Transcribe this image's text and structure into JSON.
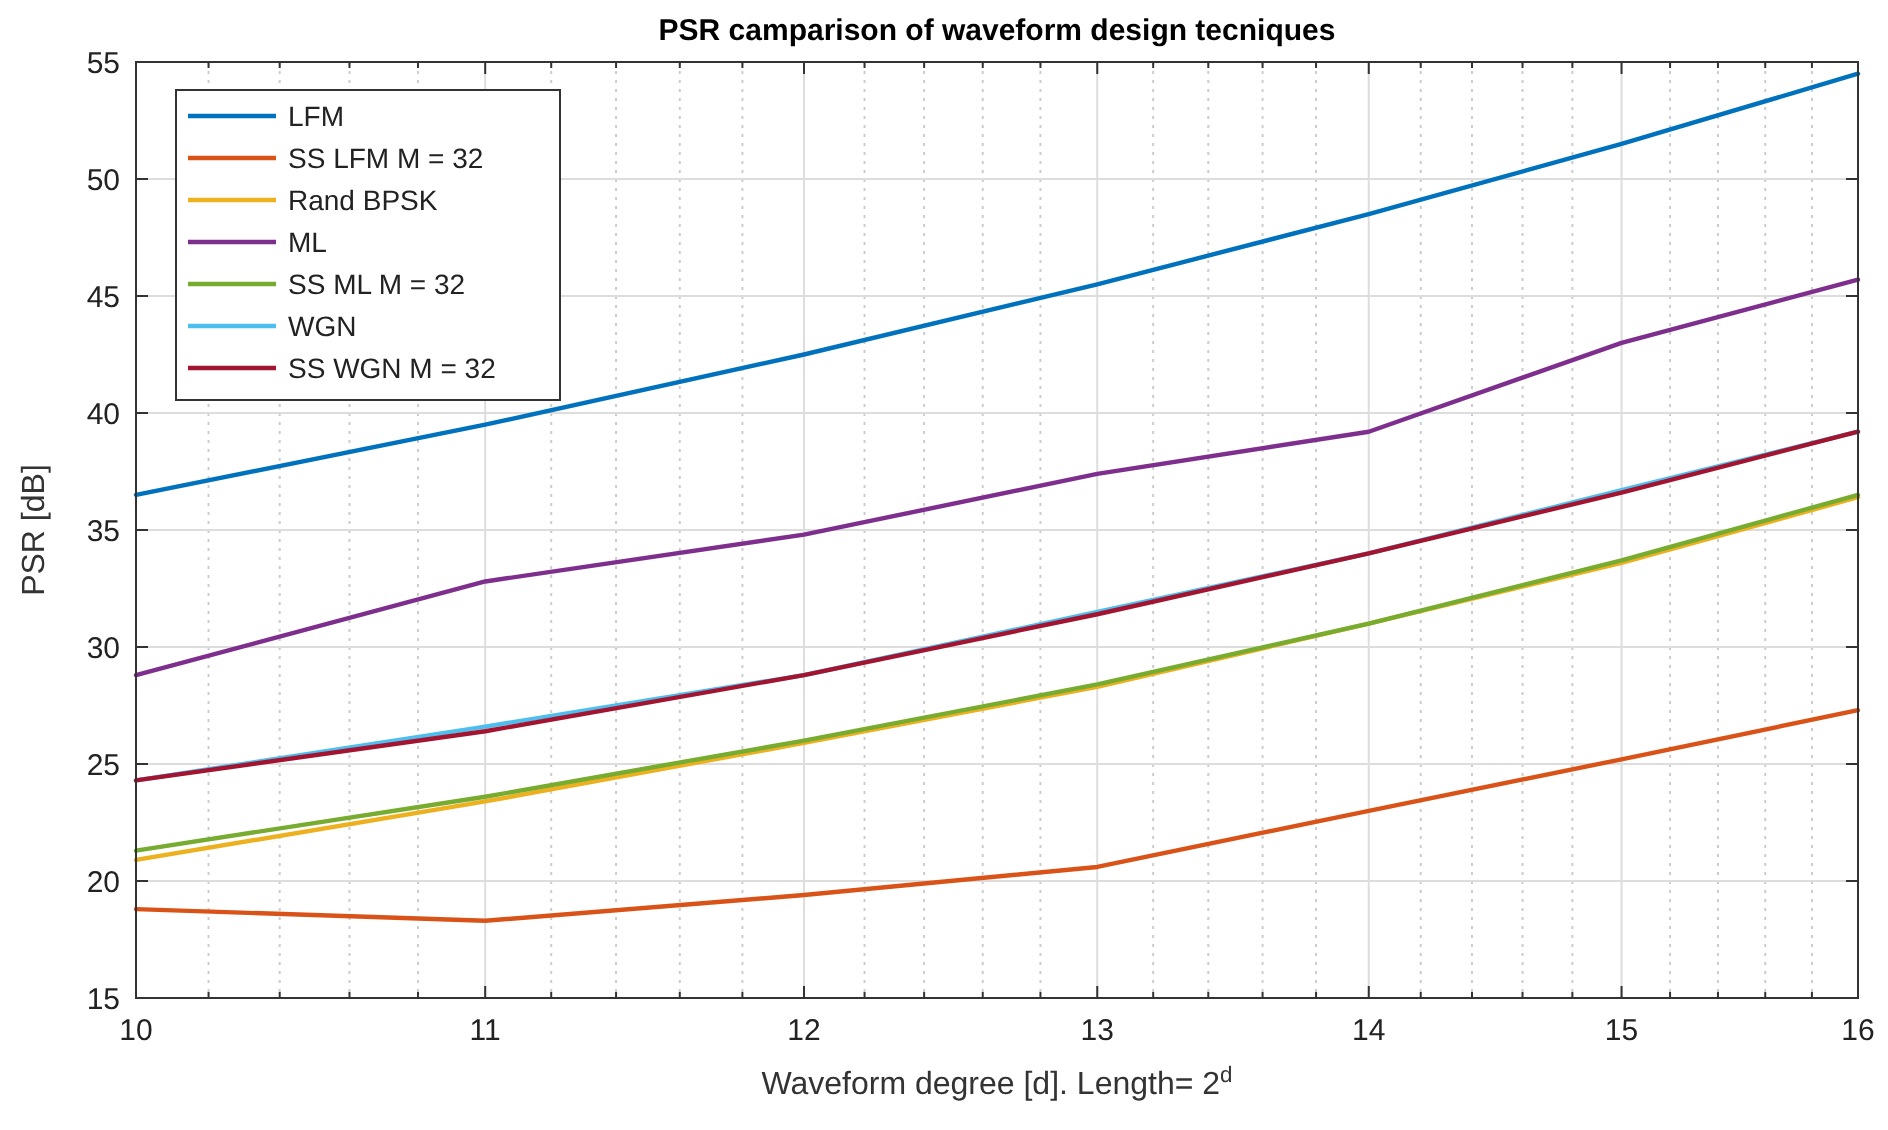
{
  "chart_data": {
    "type": "line",
    "title": "PSR camparison of waveform design tecniques",
    "xlabel": "Waveform degree [d]. Length= 2$^{d}$",
    "ylabel": "PSR [dB]",
    "x": [
      10,
      11,
      12,
      13,
      14,
      15,
      16
    ],
    "xlim": [
      10,
      16
    ],
    "log": "x",
    "xticks": [
      10,
      {
        "value": 10.2,
        "label": null
      },
      {
        "value": 10.4,
        "label": null
      },
      {
        "value": 10.6,
        "label": null
      },
      {
        "value": 10.8,
        "label": null
      },
      11,
      {
        "value": 11.2,
        "label": null
      },
      {
        "value": 11.4,
        "label": null
      },
      {
        "value": 11.6,
        "label": null
      },
      {
        "value": 11.8,
        "label": null
      },
      12,
      {
        "value": 12.2,
        "label": null
      },
      {
        "value": 12.4,
        "label": null
      },
      {
        "value": 12.6,
        "label": null
      },
      {
        "value": 12.8,
        "label": null
      },
      13,
      {
        "value": 13.2,
        "label": null
      },
      {
        "value": 13.4,
        "label": null
      },
      {
        "value": 13.6,
        "label": null
      },
      {
        "value": 13.8,
        "label": null
      },
      14,
      {
        "value": 14.2,
        "label": null
      },
      {
        "value": 14.4,
        "label": null
      },
      {
        "value": 14.6,
        "label": null
      },
      {
        "value": 14.8,
        "label": null
      },
      15,
      {
        "value": 15.2,
        "label": null
      },
      {
        "value": 15.4,
        "label": null
      },
      {
        "value": 15.6,
        "label": null
      },
      {
        "value": 15.8,
        "label": null
      },
      16
    ],
    "ylim": [
      15,
      55
    ],
    "yticks": [
      15,
      20,
      25,
      30,
      35,
      40,
      45,
      50,
      55
    ],
    "grid": true,
    "legend": "top left",
    "line_style": "solid",
    "marker": "none",
    "series": [
      {
        "name": "LFM",
        "color": "#0072bd",
        "values": [
          36.5,
          39.5,
          42.5,
          45.5,
          48.5,
          51.5,
          54.5
        ]
      },
      {
        "name": "SS LFM M = 32",
        "color": "#d95319",
        "values": [
          18.8,
          18.3,
          19.4,
          20.6,
          23.0,
          25.2,
          27.3
        ]
      },
      {
        "name": "Rand BPSK",
        "color": "#edb120",
        "values": [
          20.9,
          23.4,
          25.9,
          28.3,
          31.0,
          33.6,
          36.4
        ]
      },
      {
        "name": "ML",
        "color": "#7e2f8e",
        "values": [
          28.8,
          32.8,
          34.8,
          37.4,
          39.2,
          43.0,
          45.7
        ]
      },
      {
        "name": "SS ML M = 32",
        "color": "#77ac30",
        "values": [
          21.3,
          23.6,
          26.0,
          28.4,
          31.0,
          33.7,
          36.5
        ]
      },
      {
        "name": "WGN",
        "color": "#4dbeee",
        "values": [
          24.3,
          26.6,
          28.8,
          31.5,
          34.0,
          36.7,
          39.2
        ]
      },
      {
        "name": "SS WGN M = 32",
        "color": "#a2142f",
        "values": [
          24.3,
          26.4,
          28.8,
          31.4,
          34.0,
          36.6,
          39.2
        ]
      }
    ]
  }
}
